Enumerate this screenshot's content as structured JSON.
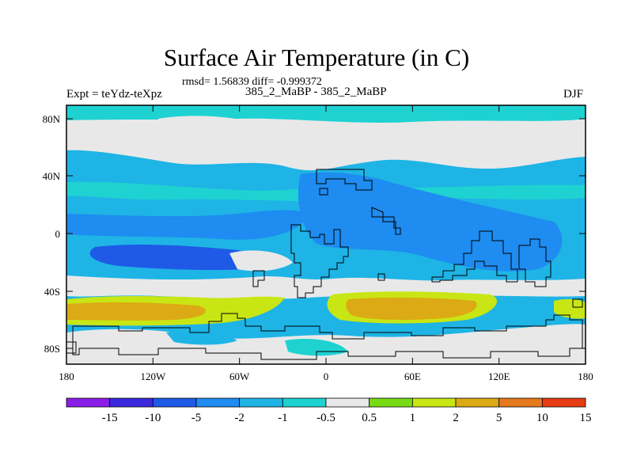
{
  "header": {
    "title": "Surface Air Temperature (in C)",
    "stats": "rmsd= 1.56839 diff= -0.999372",
    "experiment": "Expt = teYdz-teXpz",
    "comparison": "385_2_MaBP - 385_2_MaBP",
    "season": "DJF"
  },
  "map": {
    "lat_ticks": [
      "80N",
      "40N",
      "0",
      "40S",
      "80S"
    ],
    "lon_ticks": [
      "180",
      "120W",
      "60W",
      "0",
      "60E",
      "120E",
      "180"
    ],
    "ocean_color": "#e8e8e8"
  },
  "colorbar": {
    "labels": [
      "-15",
      "-10",
      "-5",
      "-2",
      "-1",
      "-0.5",
      "0.5",
      "1",
      "2",
      "5",
      "10",
      "15"
    ],
    "colors": [
      "#8a1ee6",
      "#3c28dc",
      "#1e5ae6",
      "#1e8cf0",
      "#1eb4e6",
      "#1ed2d2",
      "#e8e8e8",
      "#78dc14",
      "#c8e614",
      "#dcaa14",
      "#e6781e",
      "#e63c14"
    ]
  }
}
